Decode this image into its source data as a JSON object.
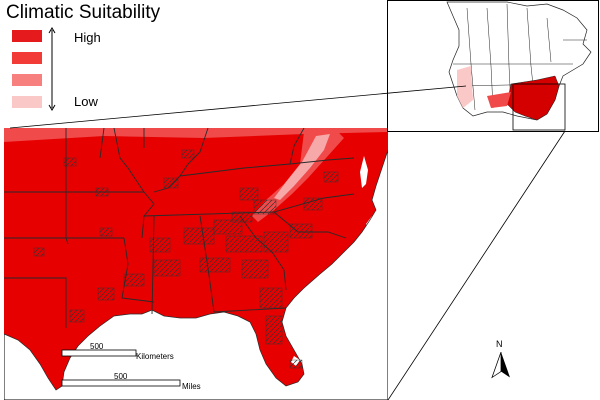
{
  "legend": {
    "title": "Climatic Suitability",
    "high_label": "High",
    "low_label": "Low",
    "swatch_colors": [
      "#e41a1c",
      "#f23a36",
      "#f7807e",
      "#fbc8c8"
    ]
  },
  "scale": {
    "km_value": "500",
    "km_unit": "Kilometers",
    "mi_value": "500",
    "mi_unit": "Miles"
  },
  "north_label": "N",
  "colors": {
    "high": "#e60000",
    "mid": "#f04a4a",
    "light": "#f7a8a8",
    "water": "#ffffff",
    "border": "#2a2a2a"
  }
}
